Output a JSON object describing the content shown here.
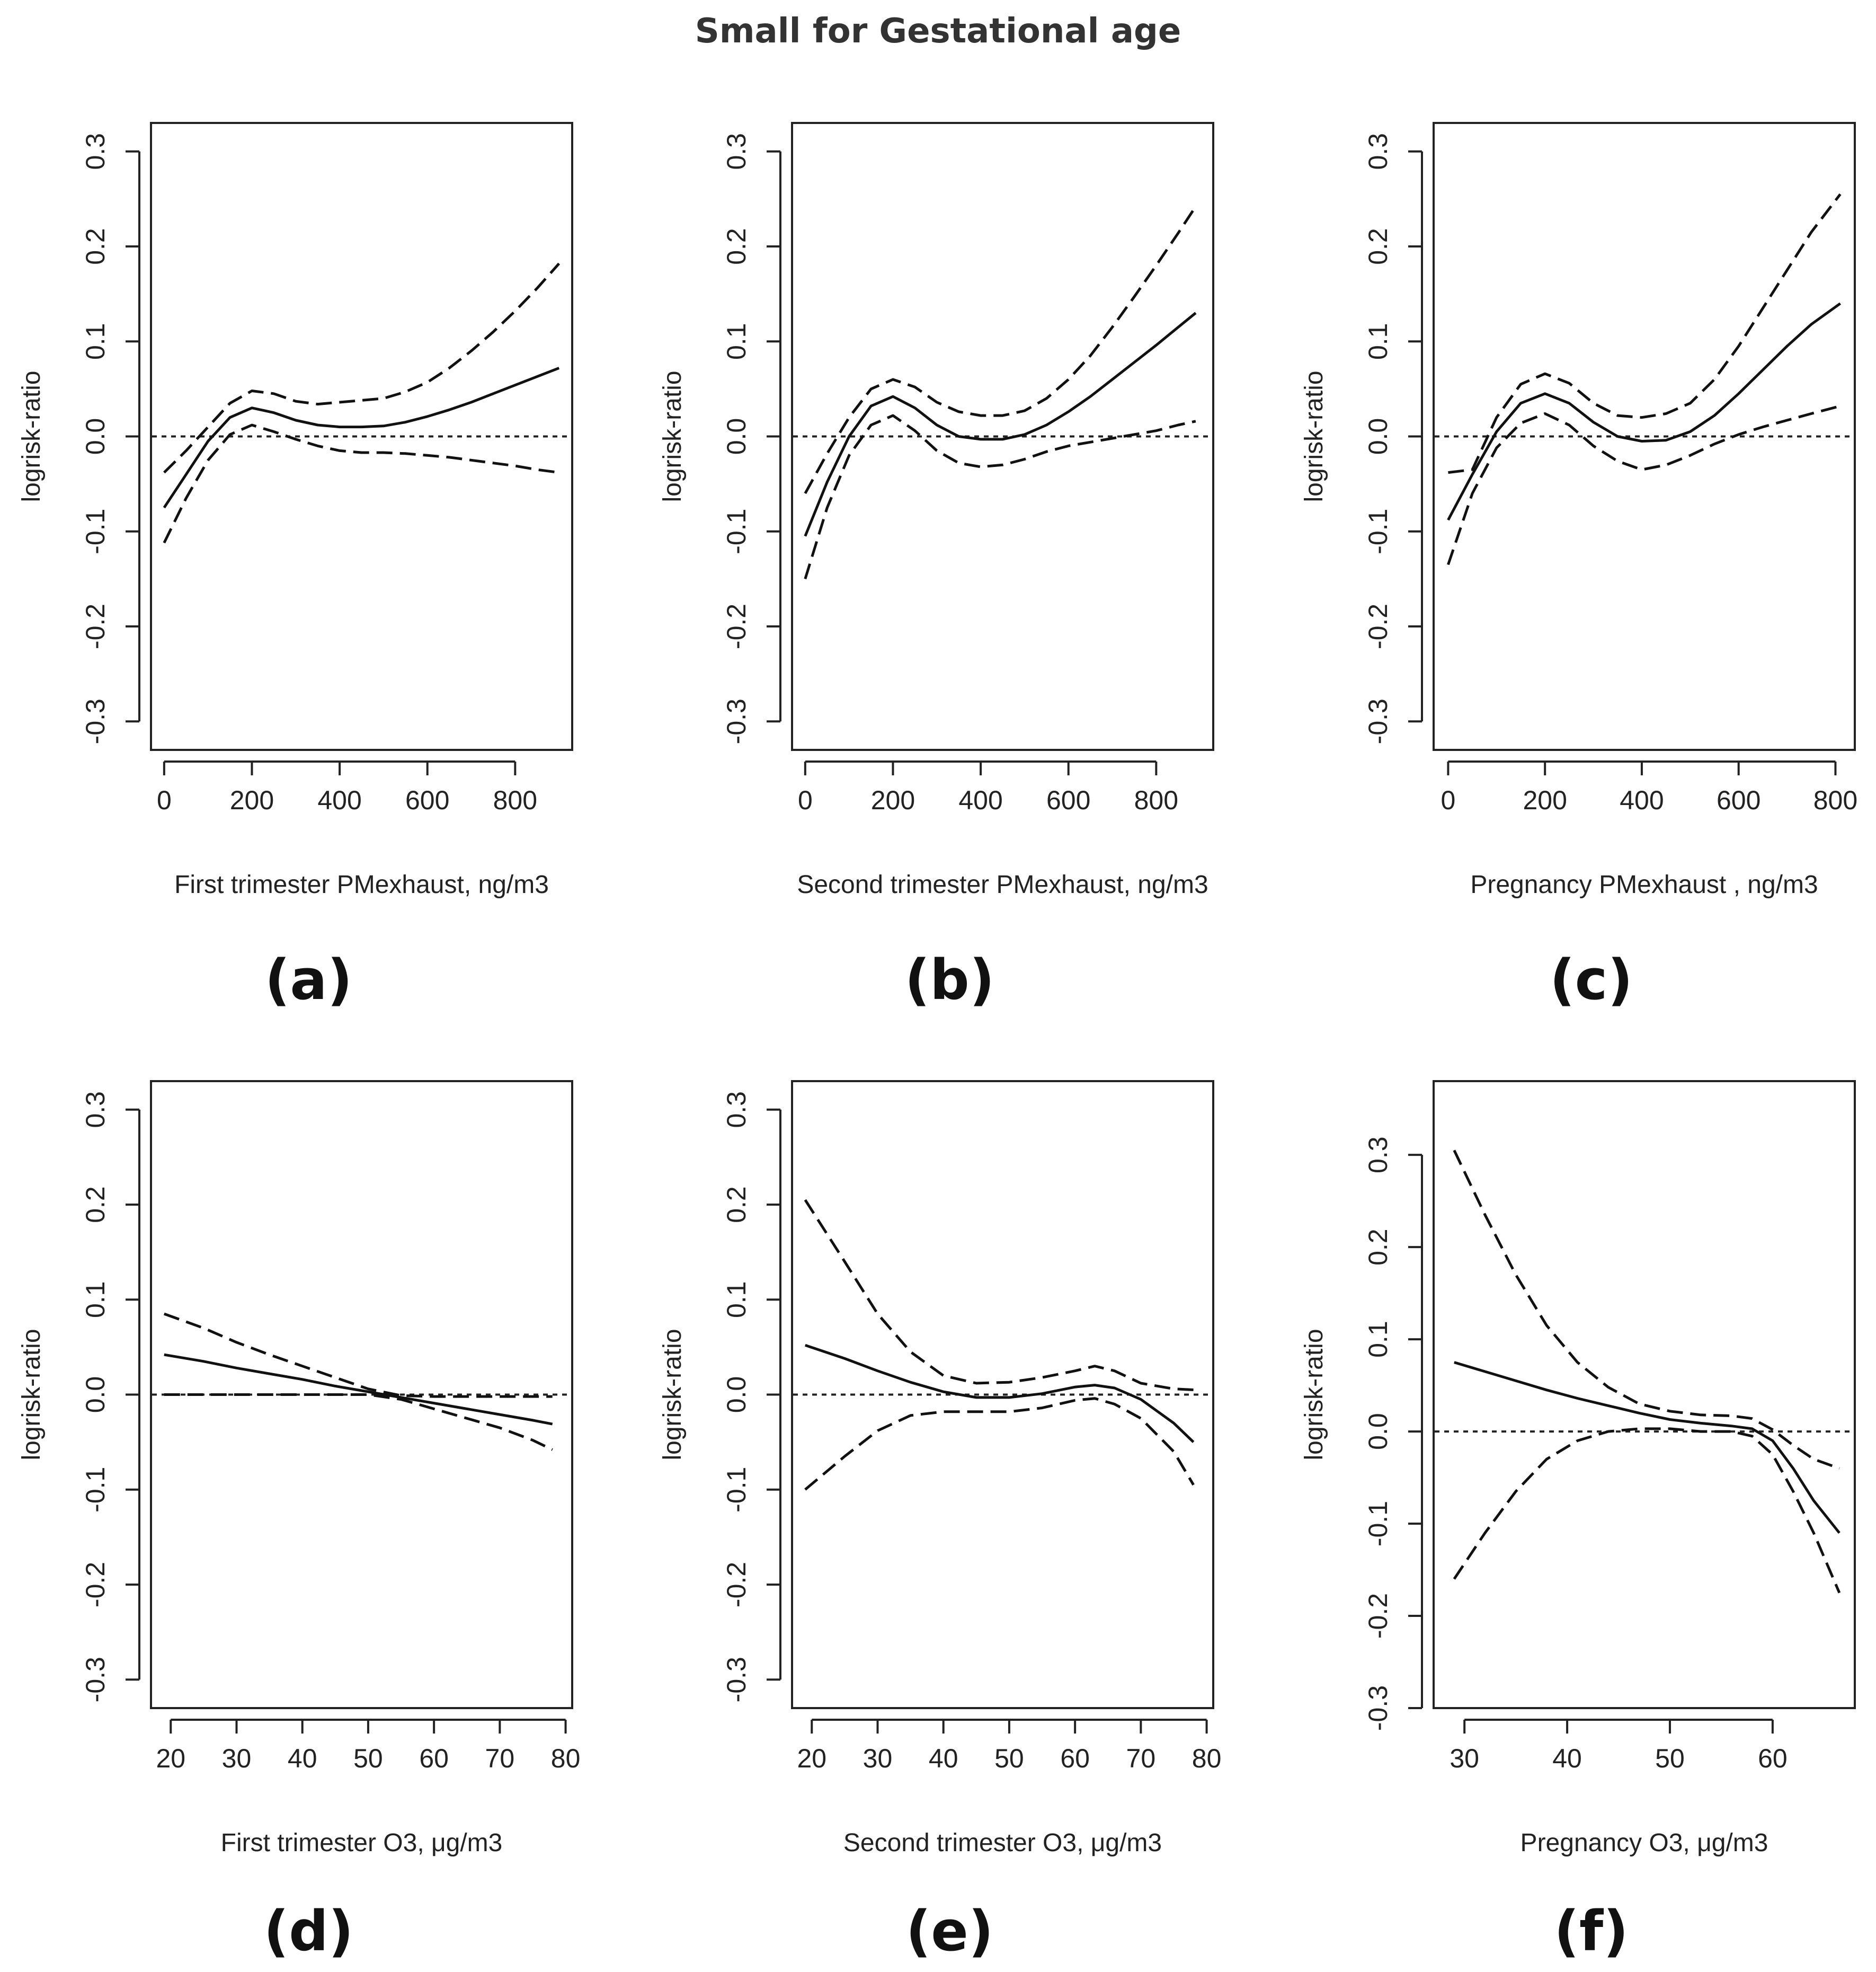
{
  "figure_title": "Small for Gestational age",
  "chart_data": [
    {
      "type": "line",
      "panel": "(a)",
      "xlabel": "First trimester PMexhaust, ng/m3",
      "ylabel": "logrisk-ratio",
      "xlim": [
        -30,
        930
      ],
      "ylim": [
        -0.33,
        0.33
      ],
      "xticks": [
        0,
        200,
        400,
        600,
        800
      ],
      "yticks": [
        -0.3,
        -0.2,
        -0.1,
        0.0,
        0.1,
        0.2,
        0.3
      ],
      "ytick_labels": [
        "-0.3",
        "-0.2",
        "-0.1",
        "0.0",
        "0.1",
        "0.2",
        "0.3"
      ],
      "reference_line": 0.0,
      "series": [
        {
          "name": "estimate",
          "style": "solid",
          "x": [
            0,
            50,
            100,
            150,
            200,
            250,
            300,
            350,
            400,
            450,
            500,
            550,
            600,
            650,
            700,
            750,
            800,
            850,
            900
          ],
          "y": [
            -0.075,
            -0.04,
            -0.005,
            0.02,
            0.03,
            0.025,
            0.017,
            0.012,
            0.01,
            0.01,
            0.011,
            0.015,
            0.021,
            0.028,
            0.036,
            0.045,
            0.054,
            0.063,
            0.072
          ]
        },
        {
          "name": "upper 95% CI",
          "style": "dashed",
          "x": [
            0,
            50,
            100,
            150,
            200,
            250,
            300,
            350,
            400,
            450,
            500,
            550,
            600,
            650,
            700,
            750,
            800,
            850,
            900
          ],
          "y": [
            -0.038,
            -0.015,
            0.01,
            0.035,
            0.048,
            0.045,
            0.037,
            0.034,
            0.036,
            0.038,
            0.04,
            0.047,
            0.057,
            0.072,
            0.09,
            0.11,
            0.132,
            0.156,
            0.182
          ]
        },
        {
          "name": "lower 95% CI",
          "style": "dashed",
          "x": [
            0,
            50,
            100,
            150,
            200,
            250,
            300,
            350,
            400,
            450,
            500,
            550,
            600,
            650,
            700,
            750,
            800,
            850,
            900
          ],
          "y": [
            -0.112,
            -0.065,
            -0.025,
            0.002,
            0.012,
            0.005,
            -0.003,
            -0.01,
            -0.015,
            -0.017,
            -0.017,
            -0.018,
            -0.02,
            -0.022,
            -0.025,
            -0.028,
            -0.031,
            -0.035,
            -0.038
          ]
        }
      ]
    },
    {
      "type": "line",
      "panel": "(b)",
      "xlabel": "Second trimester PMexhaust, ng/m3",
      "ylabel": "logrisk-ratio",
      "xlim": [
        -30,
        930
      ],
      "ylim": [
        -0.33,
        0.33
      ],
      "xticks": [
        0,
        200,
        400,
        600,
        800
      ],
      "yticks": [
        -0.3,
        -0.2,
        -0.1,
        0.0,
        0.1,
        0.2,
        0.3
      ],
      "ytick_labels": [
        "-0.3",
        "-0.2",
        "-0.1",
        "0.0",
        "0.1",
        "0.2",
        "0.3"
      ],
      "reference_line": 0.0,
      "series": [
        {
          "name": "estimate",
          "style": "solid",
          "x": [
            0,
            50,
            100,
            150,
            200,
            250,
            300,
            350,
            400,
            450,
            500,
            550,
            600,
            650,
            700,
            750,
            800,
            850,
            890
          ],
          "y": [
            -0.105,
            -0.048,
            0.0,
            0.032,
            0.042,
            0.03,
            0.012,
            0.0,
            -0.003,
            -0.003,
            0.002,
            0.012,
            0.026,
            0.042,
            0.06,
            0.078,
            0.096,
            0.115,
            0.13
          ]
        },
        {
          "name": "upper 95% CI",
          "style": "dashed",
          "x": [
            0,
            50,
            100,
            150,
            200,
            250,
            300,
            350,
            400,
            450,
            500,
            550,
            600,
            650,
            700,
            750,
            800,
            850,
            890
          ],
          "y": [
            -0.06,
            -0.018,
            0.02,
            0.05,
            0.06,
            0.052,
            0.036,
            0.026,
            0.022,
            0.022,
            0.027,
            0.04,
            0.06,
            0.085,
            0.115,
            0.147,
            0.18,
            0.214,
            0.242
          ]
        },
        {
          "name": "lower 95% CI",
          "style": "dashed",
          "x": [
            0,
            50,
            100,
            150,
            200,
            250,
            300,
            350,
            400,
            450,
            500,
            550,
            600,
            650,
            700,
            750,
            800,
            850,
            890
          ],
          "y": [
            -0.15,
            -0.075,
            -0.02,
            0.012,
            0.022,
            0.006,
            -0.015,
            -0.028,
            -0.032,
            -0.03,
            -0.024,
            -0.016,
            -0.01,
            -0.006,
            -0.002,
            0.002,
            0.006,
            0.012,
            0.016
          ]
        }
      ]
    },
    {
      "type": "line",
      "panel": "(c)",
      "xlabel": "Pregnancy PMexhaust , ng/m3",
      "ylabel": "logrisk-ratio",
      "xlim": [
        -30,
        840
      ],
      "ylim": [
        -0.33,
        0.33
      ],
      "xticks": [
        0,
        200,
        400,
        600,
        800
      ],
      "yticks": [
        -0.3,
        -0.2,
        -0.1,
        0.0,
        0.1,
        0.2,
        0.3
      ],
      "ytick_labels": [
        "-0.3",
        "-0.2",
        "-0.1",
        "0.0",
        "0.1",
        "0.2",
        "0.3"
      ],
      "reference_line": 0.0,
      "series": [
        {
          "name": "estimate",
          "style": "solid",
          "x": [
            0,
            50,
            100,
            150,
            200,
            250,
            300,
            350,
            400,
            450,
            500,
            550,
            600,
            650,
            700,
            750,
            810
          ],
          "y": [
            -0.088,
            -0.04,
            0.005,
            0.035,
            0.045,
            0.035,
            0.015,
            0.0,
            -0.005,
            -0.004,
            0.005,
            0.022,
            0.045,
            0.07,
            0.095,
            0.118,
            0.14
          ]
        },
        {
          "name": "upper 95% CI",
          "style": "dashed",
          "x": [
            0,
            50,
            100,
            150,
            200,
            250,
            300,
            350,
            400,
            450,
            500,
            550,
            600,
            650,
            700,
            750,
            810
          ],
          "y": [
            -0.038,
            -0.035,
            0.02,
            0.055,
            0.066,
            0.056,
            0.035,
            0.022,
            0.02,
            0.024,
            0.035,
            0.06,
            0.095,
            0.135,
            0.175,
            0.215,
            0.255
          ]
        },
        {
          "name": "lower 95% CI",
          "style": "dashed",
          "x": [
            0,
            50,
            100,
            150,
            200,
            250,
            300,
            350,
            400,
            450,
            500,
            550,
            600,
            650,
            700,
            750,
            810
          ],
          "y": [
            -0.135,
            -0.06,
            -0.012,
            0.014,
            0.024,
            0.012,
            -0.01,
            -0.026,
            -0.035,
            -0.03,
            -0.02,
            -0.008,
            0.002,
            0.01,
            0.017,
            0.024,
            0.032
          ]
        }
      ]
    },
    {
      "type": "line",
      "panel": "(d)",
      "xlabel": "First trimester O3, μg/m3",
      "ylabel": "logrisk-ratio",
      "xlim": [
        17,
        81
      ],
      "ylim": [
        -0.33,
        0.33
      ],
      "xticks": [
        20,
        30,
        40,
        50,
        60,
        70,
        80
      ],
      "yticks": [
        -0.3,
        -0.2,
        -0.1,
        0.0,
        0.1,
        0.2,
        0.3
      ],
      "ytick_labels": [
        "-0.3",
        "-0.2",
        "-0.1",
        "0.0",
        "0.1",
        "0.2",
        "0.3"
      ],
      "reference_line": 0.0,
      "series": [
        {
          "name": "estimate",
          "style": "solid",
          "x": [
            19,
            25,
            30,
            35,
            40,
            45,
            50,
            55,
            60,
            65,
            70,
            75,
            78
          ],
          "y": [
            0.042,
            0.035,
            0.028,
            0.022,
            0.016,
            0.009,
            0.003,
            -0.003,
            -0.009,
            -0.015,
            -0.021,
            -0.027,
            -0.031
          ]
        },
        {
          "name": "upper 95% CI",
          "style": "dashed",
          "x": [
            19,
            25,
            30,
            35,
            40,
            45,
            50,
            55,
            60,
            65,
            70,
            75,
            78
          ],
          "y": [
            0.085,
            0.07,
            0.055,
            0.042,
            0.03,
            0.018,
            0.006,
            -0.001,
            -0.002,
            -0.002,
            -0.002,
            -0.002,
            -0.002
          ]
        },
        {
          "name": "lower 95% CI",
          "style": "dashed",
          "x": [
            19,
            25,
            30,
            35,
            40,
            45,
            50,
            55,
            60,
            65,
            70,
            75,
            78
          ],
          "y": [
            0.0,
            0.0,
            0.0,
            0.0,
            0.0,
            0.0,
            0.0,
            -0.005,
            -0.015,
            -0.025,
            -0.035,
            -0.048,
            -0.058
          ]
        }
      ]
    },
    {
      "type": "line",
      "panel": "(e)",
      "xlabel": "Second trimester O3, μg/m3",
      "ylabel": "logrisk-ratio",
      "xlim": [
        17,
        81
      ],
      "ylim": [
        -0.33,
        0.33
      ],
      "xticks": [
        20,
        30,
        40,
        50,
        60,
        70,
        80
      ],
      "yticks": [
        -0.3,
        -0.2,
        -0.1,
        0.0,
        0.1,
        0.2,
        0.3
      ],
      "ytick_labels": [
        "-0.3",
        "-0.2",
        "-0.1",
        "0.0",
        "0.1",
        "0.2",
        "0.3"
      ],
      "reference_line": 0.0,
      "series": [
        {
          "name": "estimate",
          "style": "solid",
          "x": [
            19,
            25,
            30,
            35,
            40,
            45,
            50,
            55,
            60,
            63,
            66,
            70,
            75,
            78
          ],
          "y": [
            0.052,
            0.038,
            0.025,
            0.013,
            0.003,
            -0.003,
            -0.003,
            0.001,
            0.008,
            0.01,
            0.007,
            -0.005,
            -0.03,
            -0.05
          ]
        },
        {
          "name": "upper 95% CI",
          "style": "dashed",
          "x": [
            19,
            25,
            30,
            35,
            40,
            45,
            50,
            55,
            60,
            63,
            66,
            70,
            75,
            78
          ],
          "y": [
            0.205,
            0.14,
            0.085,
            0.045,
            0.02,
            0.012,
            0.013,
            0.018,
            0.025,
            0.03,
            0.025,
            0.012,
            0.006,
            0.005
          ]
        },
        {
          "name": "lower 95% CI",
          "style": "dashed",
          "x": [
            19,
            25,
            30,
            35,
            40,
            45,
            50,
            55,
            60,
            63,
            66,
            70,
            75,
            78
          ],
          "y": [
            -0.1,
            -0.065,
            -0.038,
            -0.022,
            -0.018,
            -0.018,
            -0.018,
            -0.014,
            -0.006,
            -0.004,
            -0.01,
            -0.025,
            -0.06,
            -0.095
          ]
        }
      ]
    },
    {
      "type": "line",
      "panel": "(f)",
      "xlabel": "Pregnancy O3, μg/m3",
      "ylabel": "logrisk-ratio",
      "xlim": [
        27,
        68
      ],
      "ylim": [
        -0.3,
        0.38
      ],
      "xticks": [
        30,
        40,
        50,
        60
      ],
      "yticks": [
        -0.3,
        -0.2,
        -0.1,
        0.0,
        0.1,
        0.2,
        0.3
      ],
      "ytick_labels": [
        "-0.3",
        "-0.2",
        "-0.1",
        "0.0",
        "0.1",
        "0.2",
        "0.3"
      ],
      "reference_line": 0.0,
      "series": [
        {
          "name": "estimate",
          "style": "solid",
          "x": [
            29,
            32,
            35,
            38,
            41,
            44,
            47,
            50,
            53,
            56,
            58,
            60,
            62,
            64,
            66.5
          ],
          "y": [
            0.075,
            0.065,
            0.055,
            0.045,
            0.036,
            0.028,
            0.02,
            0.013,
            0.009,
            0.006,
            0.003,
            -0.01,
            -0.04,
            -0.075,
            -0.11
          ]
        },
        {
          "name": "upper 95% CI",
          "style": "dashed",
          "x": [
            29,
            32,
            35,
            38,
            41,
            44,
            47,
            50,
            53,
            56,
            58,
            60,
            62,
            64,
            66.5
          ],
          "y": [
            0.305,
            0.235,
            0.17,
            0.115,
            0.075,
            0.048,
            0.03,
            0.022,
            0.018,
            0.017,
            0.014,
            0.002,
            -0.015,
            -0.03,
            -0.04
          ]
        },
        {
          "name": "lower 95% CI",
          "style": "dashed",
          "x": [
            29,
            32,
            35,
            38,
            41,
            44,
            47,
            50,
            53,
            56,
            58,
            60,
            62,
            64,
            66.5
          ],
          "y": [
            -0.16,
            -0.11,
            -0.065,
            -0.03,
            -0.01,
            0.0,
            0.003,
            0.003,
            0.0,
            0.0,
            -0.005,
            -0.025,
            -0.065,
            -0.11,
            -0.175
          ]
        }
      ]
    }
  ]
}
